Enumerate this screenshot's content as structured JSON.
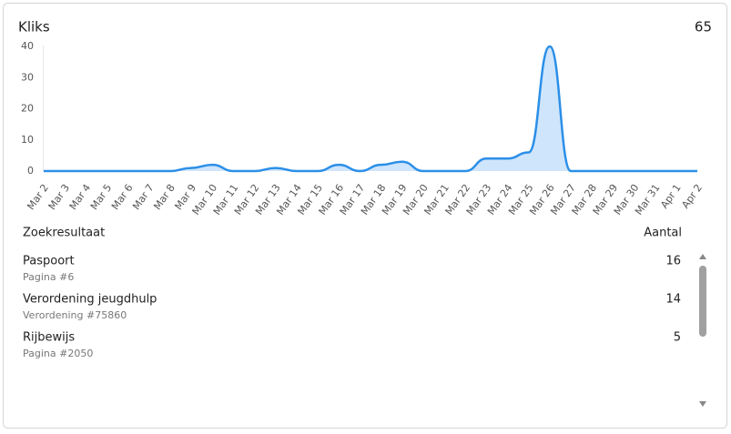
{
  "header": {
    "title": "Kliks",
    "total": 65
  },
  "chart_data": {
    "type": "area",
    "categories": [
      "Mar 2",
      "Mar 3",
      "Mar 4",
      "Mar 5",
      "Mar 6",
      "Mar 7",
      "Mar 8",
      "Mar 9",
      "Mar 10",
      "Mar 11",
      "Mar 12",
      "Mar 13",
      "Mar 14",
      "Mar 15",
      "Mar 16",
      "Mar 17",
      "Mar 18",
      "Mar 19",
      "Mar 20",
      "Mar 21",
      "Mar 22",
      "Mar 23",
      "Mar 24",
      "Mar 25",
      "Mar 26",
      "Mar 27",
      "Mar 28",
      "Mar 29",
      "Mar 30",
      "Mar 31",
      "Apr 1",
      "Apr 2"
    ],
    "values": [
      0,
      0,
      0,
      0,
      0,
      0,
      0,
      1,
      2,
      0,
      0,
      1,
      0,
      0,
      2,
      0,
      2,
      3,
      0,
      0,
      0,
      4,
      4,
      6,
      40,
      0,
      0,
      0,
      0,
      0,
      0,
      0
    ],
    "color": "#2b8fe8",
    "fill": "#cfe5fb",
    "ylim": [
      0,
      40
    ],
    "yticks": [
      0,
      10,
      20,
      30,
      40
    ],
    "grid": false
  },
  "table": {
    "columns": [
      "Zoekresultaat",
      "Aantal"
    ],
    "rows": [
      {
        "title": "Paspoort",
        "subtitle": "Pagina #6",
        "count": 16
      },
      {
        "title": "Verordening jeugdhulp",
        "subtitle": "Verordening #75860",
        "count": 14
      },
      {
        "title": "Rijbewijs",
        "subtitle": "Pagina #2050",
        "count": 5
      }
    ]
  }
}
